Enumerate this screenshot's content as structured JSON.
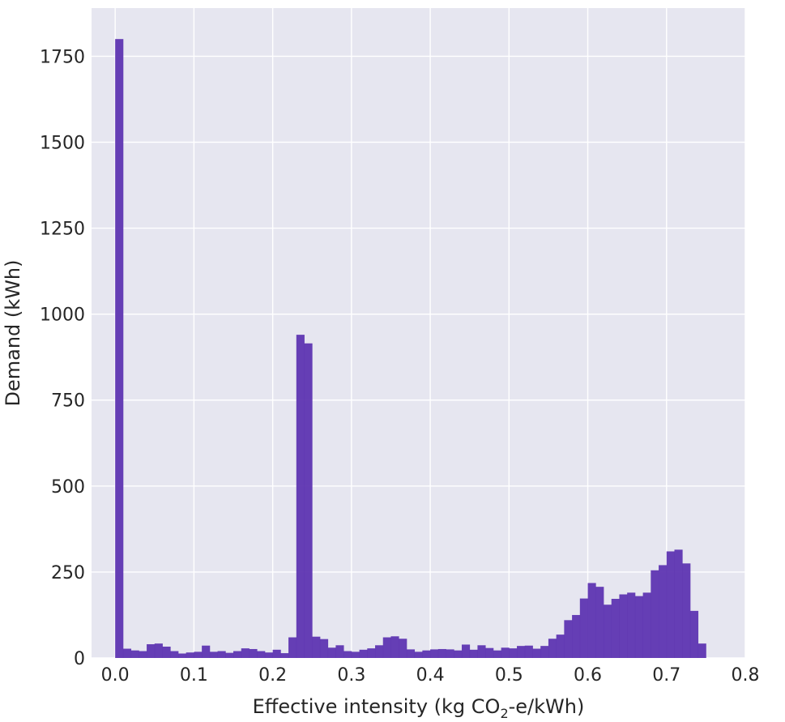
{
  "chart_data": {
    "type": "bar",
    "style": "histogram",
    "title": "",
    "xlabel_parts": {
      "before": "Effective intensity (kg CO",
      "subscript": "2",
      "after": "-e/kWh)"
    },
    "ylabel": "Demand (kWh)",
    "xlim": [
      -0.03,
      0.8
    ],
    "ylim": [
      0,
      1890
    ],
    "x_ticks": [
      0.0,
      0.1,
      0.2,
      0.3,
      0.4,
      0.5,
      0.6,
      0.7,
      0.8
    ],
    "x_tick_labels": [
      "0.0",
      "0.1",
      "0.2",
      "0.3",
      "0.4",
      "0.5",
      "0.6",
      "0.7",
      "0.8"
    ],
    "y_ticks": [
      0,
      250,
      500,
      750,
      1000,
      1250,
      1500,
      1750
    ],
    "y_tick_labels": [
      "0",
      "250",
      "500",
      "750",
      "1000",
      "1250",
      "1500",
      "1750"
    ],
    "grid": true,
    "bar_color": "#5e35b1",
    "background_color": "#e6e6f0",
    "grid_color": "#ffffff",
    "bin_start": 0.0,
    "bin_width": 0.01,
    "values": [
      1800,
      27,
      22,
      20,
      40,
      42,
      33,
      20,
      13,
      16,
      18,
      36,
      18,
      20,
      15,
      20,
      28,
      26,
      20,
      16,
      24,
      14,
      60,
      940,
      915,
      62,
      55,
      30,
      37,
      20,
      18,
      24,
      28,
      37,
      60,
      63,
      56,
      25,
      18,
      22,
      25,
      26,
      25,
      22,
      39,
      24,
      37,
      29,
      22,
      30,
      28,
      35,
      36,
      27,
      35,
      56,
      68,
      110,
      125,
      173,
      218,
      207,
      155,
      172,
      185,
      190,
      180,
      190,
      255,
      270,
      310,
      315,
      275,
      137,
      42
    ]
  }
}
